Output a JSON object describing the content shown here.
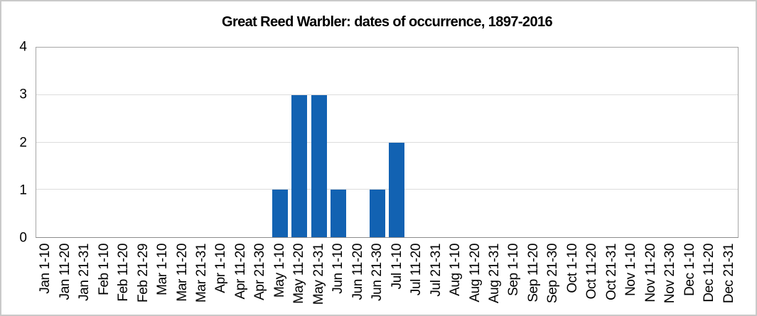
{
  "title": "Great Reed Warbler: dates of occurrence, 1897-2016",
  "chart_data": {
    "type": "bar",
    "title": "Great Reed Warbler: dates of occurrence, 1897-2016",
    "categories": [
      "Jan 1-10",
      "Jan 11-20",
      "Jan 21-31",
      "Feb 1-10",
      "Feb 11-20",
      "Feb 21-29",
      "Mar 1-10",
      "Mar 11-20",
      "Mar 21-31",
      "Apr 1-10",
      "Apr 11-20",
      "Apr 21-30",
      "May 1-10",
      "May 11-20",
      "May 21-31",
      "Jun 1-10",
      "Jun 11-20",
      "Jun 21-30",
      "Jul 1-10",
      "Jul 11-20",
      "Jul 21-31",
      "Aug 1-10",
      "Aug 11-20",
      "Aug 21-31",
      "Sep 1-10",
      "Sep 11-20",
      "Sep 21-30",
      "Oct 1-10",
      "Oct 11-20",
      "Oct 21-31",
      "Nov 1-10",
      "Nov 11-20",
      "Nov 21-30",
      "Dec 1-10",
      "Dec 11-20",
      "Dec 21-31"
    ],
    "values": [
      0,
      0,
      0,
      0,
      0,
      0,
      0,
      0,
      0,
      0,
      0,
      0,
      1,
      3,
      3,
      1,
      0,
      1,
      2,
      0,
      0,
      0,
      0,
      0,
      0,
      0,
      0,
      0,
      0,
      0,
      0,
      0,
      0,
      0,
      0,
      0
    ],
    "xlabel": "",
    "ylabel": "",
    "ylim": [
      0,
      4
    ],
    "yticks": [
      0,
      1,
      2,
      3,
      4
    ],
    "grid": true,
    "legend": false,
    "bar_color": "#1262b2",
    "gridline_color": "#dcdcdc",
    "plot_border_color": "#a6a6a6",
    "axis_line_color": "#8c8c8c",
    "text_color": "#000000",
    "background_color": "#ffffff",
    "outer_border_color": "#c9c9c9"
  }
}
